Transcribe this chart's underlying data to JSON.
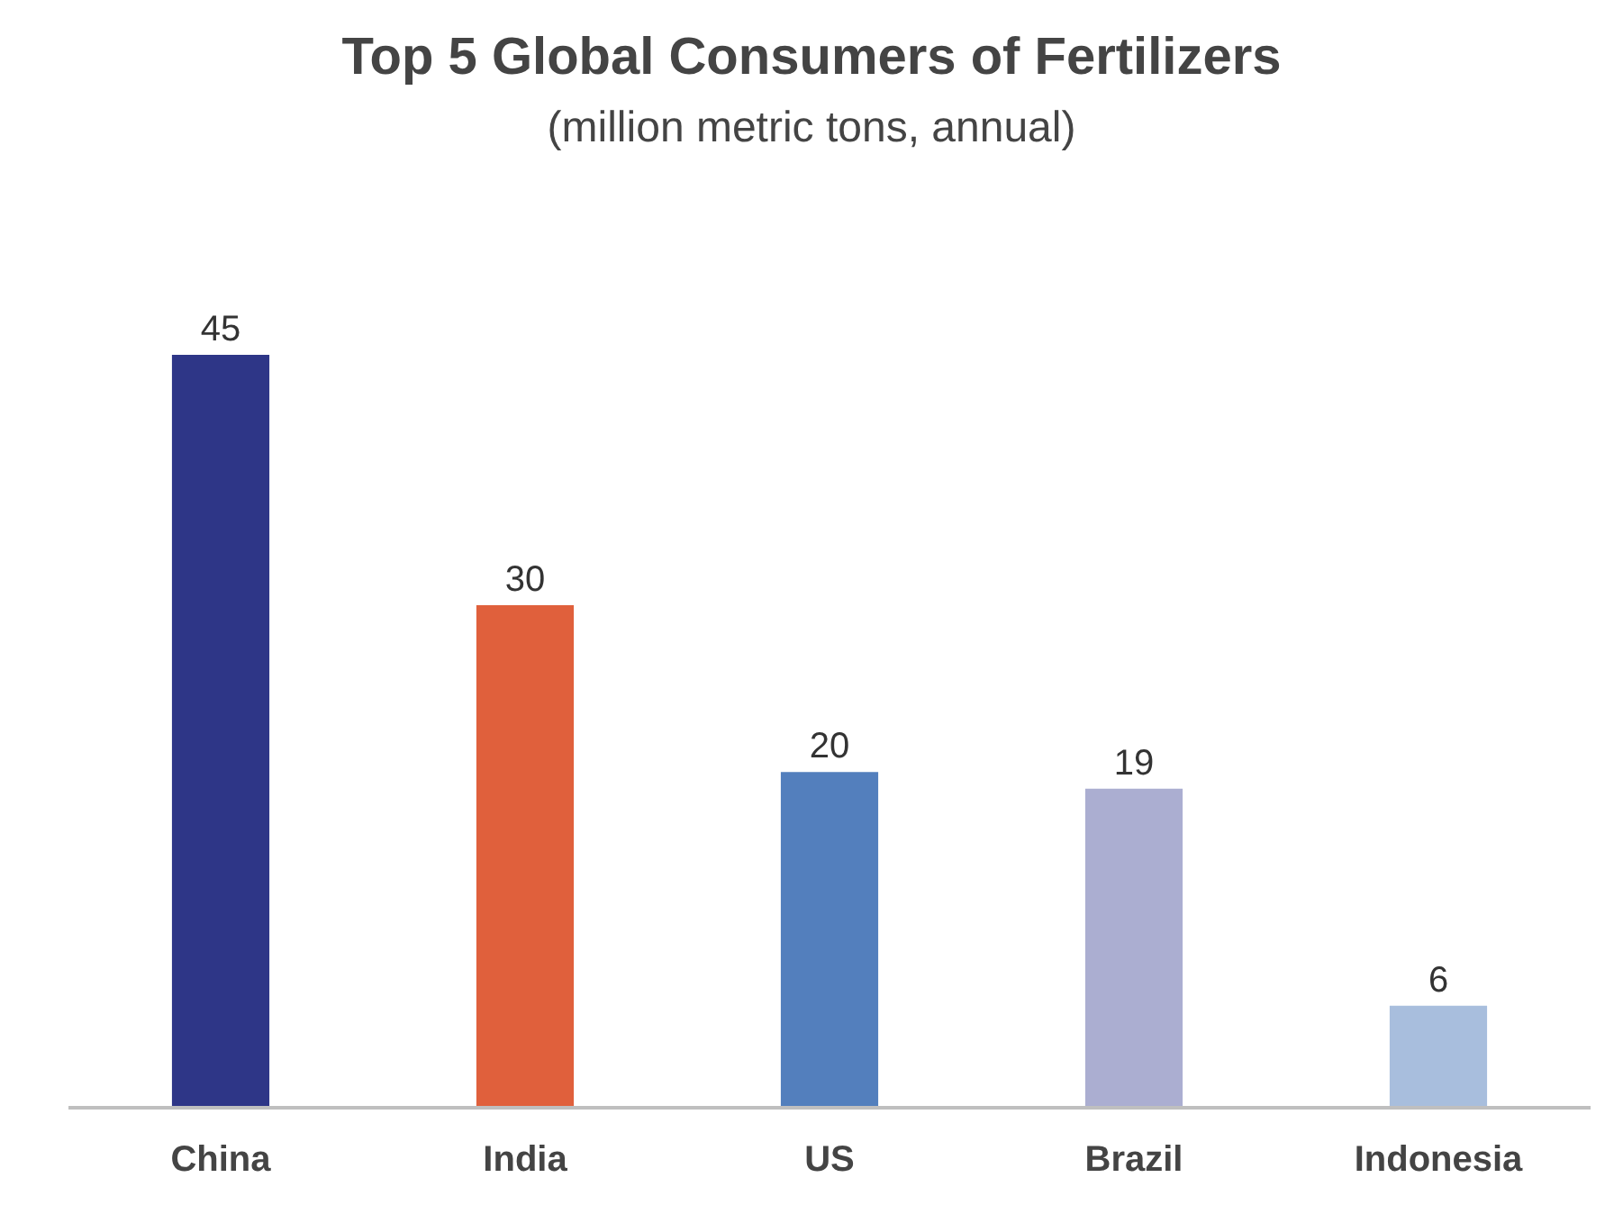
{
  "chart_data": {
    "type": "bar",
    "title": "Top 5 Global Consumers of Fertilizers",
    "subtitle": "(million metric tons, annual)",
    "categories": [
      "China",
      "India",
      "US",
      "Brazil",
      "Indonesia"
    ],
    "values": [
      45,
      30,
      20,
      19,
      6
    ],
    "colors": [
      "#2e3687",
      "#e0603c",
      "#537fbd",
      "#abaed1",
      "#a8bedd"
    ],
    "data_labels": true,
    "tick_labels": "x"
  }
}
